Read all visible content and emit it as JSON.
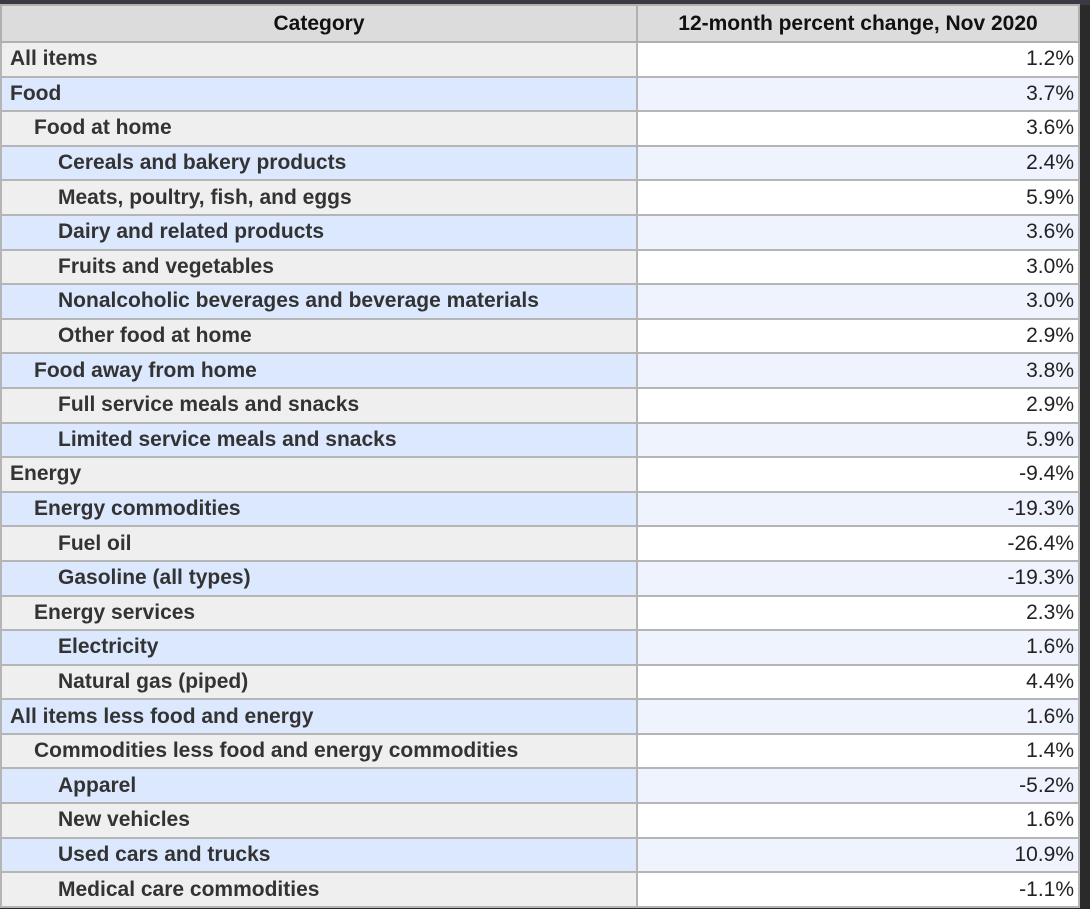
{
  "table": {
    "headers": [
      "Category",
      "12-month percent change, Nov 2020"
    ],
    "rows": [
      {
        "category": "All items",
        "level": 0,
        "value": "1.2%"
      },
      {
        "category": "Food",
        "level": 0,
        "value": "3.7%"
      },
      {
        "category": "Food at home",
        "level": 1,
        "value": "3.6%"
      },
      {
        "category": "Cereals and bakery products",
        "level": 2,
        "value": "2.4%"
      },
      {
        "category": "Meats, poultry, fish, and eggs",
        "level": 2,
        "value": "5.9%"
      },
      {
        "category": "Dairy and related products",
        "level": 2,
        "value": "3.6%"
      },
      {
        "category": "Fruits and vegetables",
        "level": 2,
        "value": "3.0%"
      },
      {
        "category": "Nonalcoholic beverages and beverage materials",
        "level": 2,
        "value": "3.0%"
      },
      {
        "category": "Other food at home",
        "level": 2,
        "value": "2.9%"
      },
      {
        "category": "Food away from home",
        "level": 1,
        "value": "3.8%"
      },
      {
        "category": "Full service meals and snacks",
        "level": 2,
        "value": "2.9%"
      },
      {
        "category": "Limited service meals and snacks",
        "level": 2,
        "value": "5.9%"
      },
      {
        "category": "Energy",
        "level": 0,
        "value": "-9.4%"
      },
      {
        "category": "Energy commodities",
        "level": 1,
        "value": "-19.3%"
      },
      {
        "category": "Fuel oil",
        "level": 2,
        "value": "-26.4%"
      },
      {
        "category": "Gasoline (all types)",
        "level": 2,
        "value": "-19.3%"
      },
      {
        "category": "Energy services",
        "level": 1,
        "value": "2.3%"
      },
      {
        "category": "Electricity",
        "level": 2,
        "value": "1.6%"
      },
      {
        "category": "Natural gas (piped)",
        "level": 2,
        "value": "4.4%"
      },
      {
        "category": "All items less food and energy",
        "level": 0,
        "value": "1.6%"
      },
      {
        "category": "Commodities less food and energy commodities",
        "level": 1,
        "value": "1.4%"
      },
      {
        "category": "Apparel",
        "level": 2,
        "value": "-5.2%"
      },
      {
        "category": "New vehicles",
        "level": 2,
        "value": "1.6%"
      },
      {
        "category": "Used cars and trucks",
        "level": 2,
        "value": "10.9%"
      },
      {
        "category": "Medical care commodities",
        "level": 2,
        "value": "-1.1%"
      }
    ]
  },
  "colors": {
    "row_alt_category": "#dbe8fd",
    "row_alt_value": "#eef3fd",
    "header_bg": "#dcdcdc"
  }
}
